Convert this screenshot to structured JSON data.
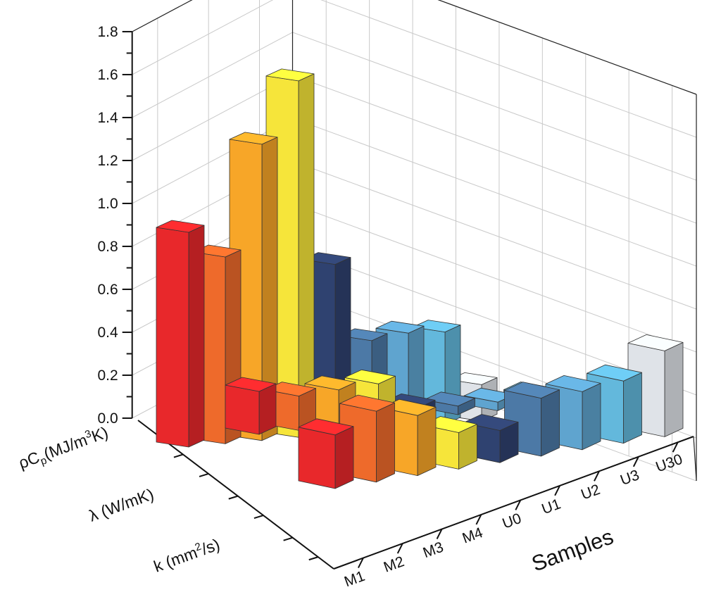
{
  "chart_data": {
    "type": "bar",
    "categories": [
      "M1",
      "M2",
      "M3",
      "M4",
      "U0",
      "U1",
      "U2",
      "U3",
      "U30"
    ],
    "series": [
      {
        "name": "ρCp(MJ/m3K)",
        "values": [
          1.0,
          0.87,
          1.38,
          1.66,
          0.79,
          0.42,
          0.44,
          0.43,
          0.17
        ]
      },
      {
        "name": "λ (W/mK)",
        "values": [
          0.2,
          0.16,
          0.17,
          0.18,
          0.05,
          0.04,
          0.04,
          0.05,
          0.04
        ]
      },
      {
        "name": "k (mm2/s)",
        "values": [
          0.25,
          0.33,
          0.28,
          0.17,
          0.15,
          0.27,
          0.27,
          0.29,
          0.4
        ]
      }
    ],
    "ylim": [
      0,
      1.8
    ],
    "yticks": [
      "0.0",
      "0.2",
      "0.4",
      "0.6",
      "0.8",
      "1.0",
      "1.2",
      "1.4",
      "1.6",
      "1.8"
    ],
    "xlabel": "Samples",
    "ylabel": "",
    "grid": true,
    "colors": [
      "#e8282b",
      "#ee6a2b",
      "#f7a628",
      "#f6e53a",
      "#2f4270",
      "#4c79a6",
      "#5fa4cf",
      "#63b8dc",
      "#dfe3e8"
    ],
    "series_labels": {
      "rho": {
        "base": "ρC",
        "sub": "p",
        "unit_pre": "(MJ/m",
        "sup": "3",
        "unit_post": "K)"
      },
      "lambda": {
        "text": "λ (W/mK)"
      },
      "k": {
        "pre": "k (mm",
        "sup": "2",
        "post": "/s)"
      }
    }
  }
}
